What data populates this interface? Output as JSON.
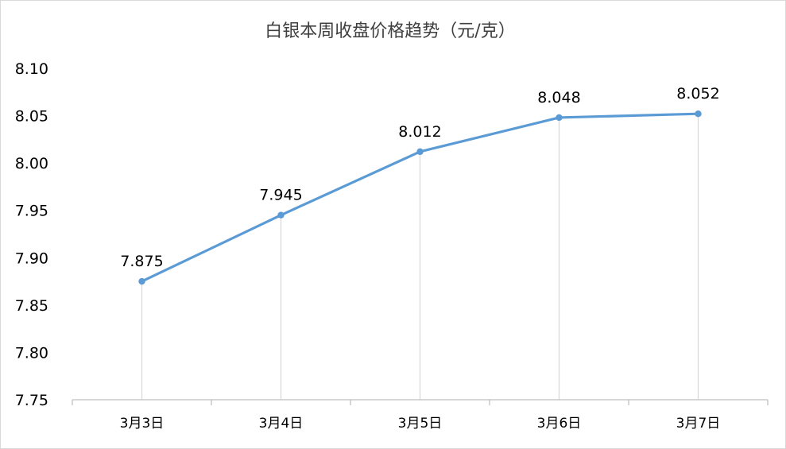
{
  "chart_data": {
    "type": "line",
    "title": "白银本周收盘价格趋势（元/克）",
    "xlabel": "",
    "ylabel": "",
    "categories": [
      "3月3日",
      "3月4日",
      "3月5日",
      "3月6日",
      "3月7日"
    ],
    "series": [
      {
        "values": [
          7.875,
          7.945,
          8.012,
          8.048,
          8.052
        ],
        "data_labels": [
          "7.875",
          "7.945",
          "8.012",
          "8.048",
          "8.052"
        ]
      }
    ],
    "ylim": [
      7.75,
      8.1
    ],
    "y_ticks": [
      "7.75",
      "7.80",
      "7.85",
      "7.90",
      "7.95",
      "8.00",
      "8.05",
      "8.10"
    ],
    "y_tick_values": [
      7.75,
      7.8,
      7.85,
      7.9,
      7.95,
      8.0,
      8.05,
      8.1
    ],
    "grid": false,
    "drop_lines": true,
    "markers": true,
    "legend": "none",
    "colors": {
      "line": "#5b9bd5",
      "drop_line": "#d9d9d9",
      "axis": "#bfbfbf",
      "title": "#404040"
    }
  }
}
